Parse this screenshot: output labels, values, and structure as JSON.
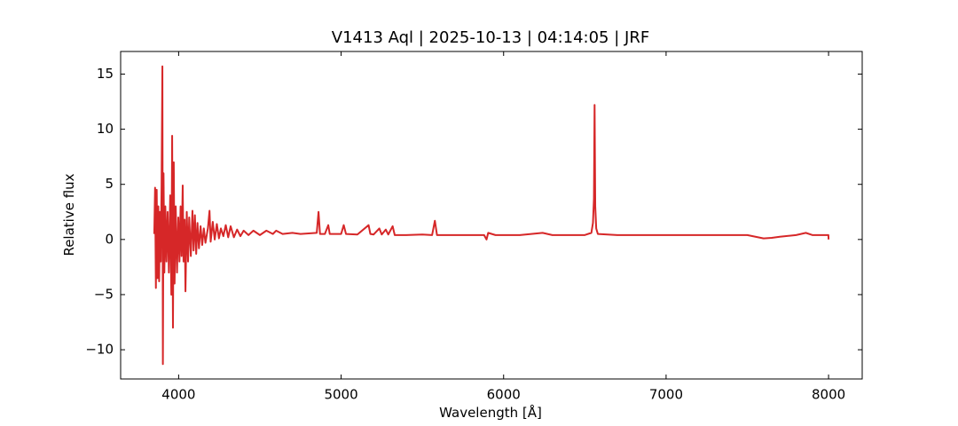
{
  "chart_data": {
    "type": "line",
    "title": "V1413 Aql | 2025-10-13 | 04:14:05 | JRF",
    "xlabel": "Wavelength [Å]",
    "ylabel": "Relative flux",
    "color": "#d62728",
    "xlim": [
      3643,
      8207
    ],
    "ylim": [
      -12.65,
      17.05
    ],
    "xticks": [
      4000,
      5000,
      6000,
      7000,
      8000
    ],
    "yticks": [
      -10,
      -5,
      0,
      5,
      10,
      15
    ],
    "x": [
      3850,
      3855,
      3860,
      3865,
      3870,
      3875,
      3880,
      3885,
      3890,
      3895,
      3900,
      3903,
      3907,
      3912,
      3918,
      3925,
      3932,
      3940,
      3948,
      3955,
      3960,
      3965,
      3970,
      3975,
      3982,
      3990,
      3998,
      4005,
      4012,
      4018,
      4025,
      4030,
      4037,
      4042,
      4050,
      4058,
      4065,
      4075,
      4085,
      4092,
      4100,
      4108,
      4116,
      4125,
      4135,
      4145,
      4155,
      4165,
      4180,
      4190,
      4197,
      4210,
      4222,
      4235,
      4248,
      4260,
      4275,
      4290,
      4305,
      4320,
      4340,
      4360,
      4380,
      4400,
      4430,
      4460,
      4500,
      4540,
      4580,
      4600,
      4640,
      4700,
      4750,
      4800,
      4850,
      4861,
      4870,
      4900,
      4921,
      4930,
      5000,
      5016,
      5030,
      5100,
      5169,
      5180,
      5200,
      5235,
      5250,
      5275,
      5290,
      5317,
      5330,
      5400,
      5500,
      5560,
      5577,
      5590,
      5700,
      5800,
      5880,
      5895,
      5905,
      5950,
      6100,
      6240,
      6300,
      6500,
      6540,
      6550,
      6556,
      6560,
      6564,
      6570,
      6580,
      6700,
      6900,
      7200,
      7500,
      7600,
      7650,
      7700,
      7800,
      7860,
      7900,
      7999,
      8000
    ],
    "values": [
      0.5,
      4.7,
      -4.4,
      4.5,
      -3.5,
      3.0,
      -3.8,
      2.5,
      -2,
      5,
      15.7,
      -11.3,
      6,
      -3,
      3,
      -2,
      2.5,
      -3,
      4,
      -5,
      9.4,
      -8,
      7,
      -4,
      3,
      -3,
      2,
      -2,
      3,
      -1.5,
      4.9,
      -2,
      1.8,
      -4.7,
      2.5,
      -2,
      2,
      -1.5,
      2.6,
      -1,
      2.2,
      -1.3,
      1.5,
      -0.8,
      1.2,
      -0.5,
      1,
      -0.3,
      1.0,
      2.6,
      -0.2,
      1.6,
      0,
      1.4,
      0.1,
      1,
      0.3,
      1.3,
      0.2,
      1.2,
      0.2,
      0.9,
      0.3,
      0.8,
      0.4,
      0.8,
      0.4,
      0.8,
      0.5,
      0.8,
      0.5,
      0.6,
      0.5,
      0.55,
      0.6,
      2.5,
      0.5,
      0.5,
      1.3,
      0.5,
      0.5,
      1.3,
      0.5,
      0.45,
      1.3,
      0.5,
      0.45,
      1.0,
      0.45,
      0.9,
      0.45,
      1.2,
      0.4,
      0.4,
      0.45,
      0.4,
      1.7,
      0.4,
      0.4,
      0.4,
      0.4,
      0.0,
      0.6,
      0.4,
      0.4,
      0.6,
      0.4,
      0.4,
      0.6,
      1.5,
      3.7,
      12.2,
      3.0,
      1.0,
      0.5,
      0.4,
      0.4,
      0.4,
      0.4,
      0.1,
      0.15,
      0.25,
      0.4,
      0.6,
      0.4,
      0.4,
      0.0
    ]
  }
}
